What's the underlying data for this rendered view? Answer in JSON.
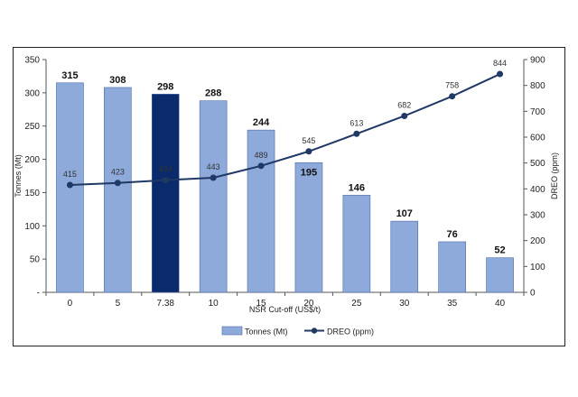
{
  "chart_data": {
    "type": "bar",
    "categories": [
      "0",
      "5",
      "7.38",
      "10",
      "15",
      "20",
      "25",
      "30",
      "35",
      "40"
    ],
    "xlabel": "NSR Cut-off (US$/t)",
    "ylabel": "Tonnes (Mt)",
    "y2label": "DREO (ppm)",
    "ylim": [
      0,
      350
    ],
    "y2lim": [
      0,
      900
    ],
    "yticks": [
      0,
      50,
      100,
      150,
      200,
      250,
      300,
      350
    ],
    "ytick_labels": [
      "-",
      "50",
      "100",
      "150",
      "200",
      "250",
      "300",
      "350"
    ],
    "y2ticks": [
      0,
      100,
      200,
      300,
      400,
      500,
      600,
      700,
      800,
      900
    ],
    "ytick2_labels": [
      "0",
      "100",
      "200",
      "300",
      "400",
      "500",
      "600",
      "700",
      "800",
      "900"
    ],
    "grid": false,
    "legend_position": "bottom",
    "highlight_category": "7.38",
    "series": [
      {
        "name": "Tonnes (Mt)",
        "type": "bar",
        "axis": "left",
        "color": "#8eaadb",
        "highlight_color": "#0b2a6b",
        "values": [
          315,
          308,
          298,
          288,
          244,
          195,
          146,
          107,
          76,
          52
        ]
      },
      {
        "name": "DREO (ppm)",
        "type": "line",
        "axis": "right",
        "color": "#1f3864",
        "values": [
          415,
          423,
          434,
          443,
          489,
          545,
          613,
          682,
          758,
          844
        ]
      }
    ]
  }
}
